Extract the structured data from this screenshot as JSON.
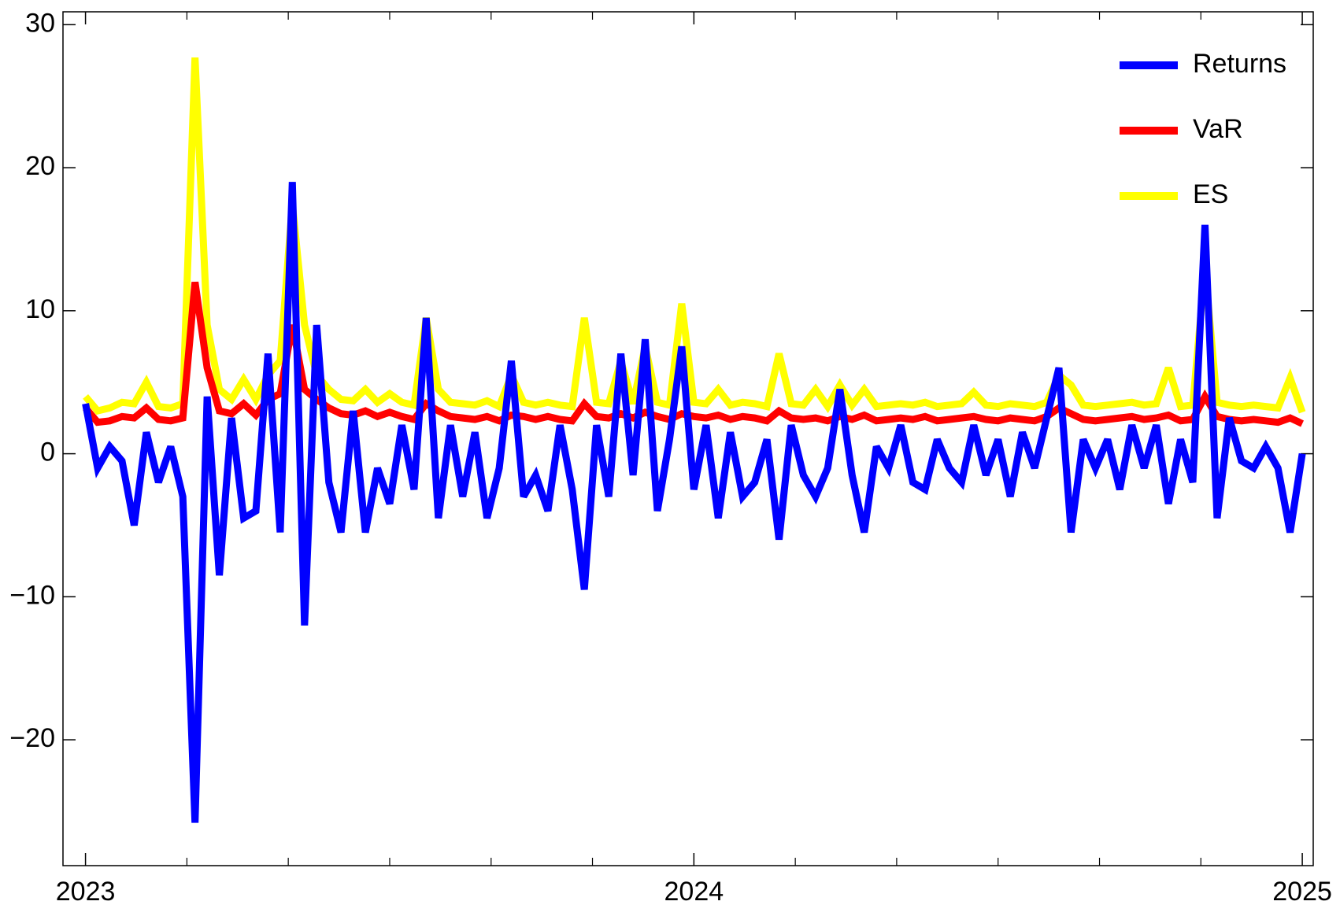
{
  "chart_data": {
    "type": "line",
    "x": [
      2023,
      2023.02,
      2023.04,
      2023.06,
      2023.08,
      2023.1,
      2023.12,
      2023.14,
      2023.16,
      2023.18,
      2023.2,
      2023.22,
      2023.24,
      2023.26,
      2023.28,
      2023.3,
      2023.32,
      2023.34,
      2023.36,
      2023.38,
      2023.4,
      2023.42,
      2023.44,
      2023.46,
      2023.48,
      2023.5,
      2023.52,
      2023.54,
      2023.56,
      2023.58,
      2023.6,
      2023.62,
      2023.64,
      2023.66,
      2023.68,
      2023.7,
      2023.72,
      2023.74,
      2023.76,
      2023.78,
      2023.8,
      2023.82,
      2023.84,
      2023.86,
      2023.88,
      2023.9,
      2023.92,
      2023.94,
      2023.96,
      2023.98,
      2024,
      2024.02,
      2024.04,
      2024.06,
      2024.08,
      2024.1,
      2024.12,
      2024.14,
      2024.16,
      2024.18,
      2024.2,
      2024.22,
      2024.24,
      2024.26,
      2024.28,
      2024.3,
      2024.32,
      2024.34,
      2024.36,
      2024.38,
      2024.4,
      2024.42,
      2024.44,
      2024.46,
      2024.48,
      2024.5,
      2024.52,
      2024.54,
      2024.56,
      2024.58,
      2024.6,
      2024.62,
      2024.64,
      2024.66,
      2024.68,
      2024.7,
      2024.72,
      2024.74,
      2024.76,
      2024.78,
      2024.8,
      2024.82,
      2024.84,
      2024.86,
      2024.88,
      2024.9,
      2024.92,
      2024.94,
      2024.96,
      2024.98,
      2025
    ],
    "series": [
      {
        "name": "Returns",
        "color": "#0000ff",
        "values": [
          3.5,
          -1,
          0.5,
          -0.5,
          -5,
          1.5,
          -2,
          0.5,
          -3,
          -25.8,
          4,
          -8.5,
          2.5,
          -4.5,
          -4,
          7,
          -5.5,
          19,
          -12,
          9,
          -2,
          -5.5,
          3,
          -5.5,
          -1,
          -3.5,
          2,
          -2.5,
          9.5,
          -4.5,
          2,
          -3,
          1.5,
          -4.5,
          -1,
          6.5,
          -3,
          -1.5,
          -4,
          2,
          -2.5,
          -9.5,
          2,
          -3,
          7,
          -1.5,
          8,
          -4,
          1,
          7.5,
          -2.5,
          2,
          -4.5,
          1.5,
          -3,
          -2,
          1,
          -6,
          2,
          -1.5,
          -3,
          -1,
          4.5,
          -1.5,
          -5.5,
          0.5,
          -1,
          2,
          -2,
          -2.5,
          1,
          -1,
          -2,
          2,
          -1.5,
          1,
          -3,
          1.5,
          -1,
          2.5,
          6,
          -5.5,
          1,
          -1,
          1,
          -2.5,
          2,
          -1,
          2,
          -3.5,
          1,
          -2,
          16,
          -4.5,
          2.5,
          -0.5,
          -1,
          0.5,
          -1,
          -5.5,
          0
        ]
      },
      {
        "name": "VaR",
        "color": "#ff0000",
        "values": [
          3.2,
          2.2,
          2.3,
          2.6,
          2.5,
          3.2,
          2.4,
          2.3,
          2.5,
          12,
          6,
          3,
          2.8,
          3.5,
          2.7,
          3.8,
          4.2,
          9,
          4.5,
          3.8,
          3.2,
          2.8,
          2.7,
          3,
          2.6,
          2.9,
          2.6,
          2.4,
          3.5,
          3,
          2.6,
          2.5,
          2.4,
          2.6,
          2.3,
          2.7,
          2.6,
          2.4,
          2.6,
          2.4,
          2.3,
          3.5,
          2.6,
          2.5,
          2.8,
          2.5,
          2.9,
          2.6,
          2.4,
          2.8,
          2.6,
          2.5,
          2.7,
          2.4,
          2.6,
          2.5,
          2.3,
          3,
          2.5,
          2.4,
          2.5,
          2.3,
          2.6,
          2.4,
          2.7,
          2.3,
          2.4,
          2.5,
          2.4,
          2.6,
          2.3,
          2.4,
          2.5,
          2.6,
          2.4,
          2.3,
          2.5,
          2.4,
          2.3,
          2.6,
          3.2,
          2.8,
          2.4,
          2.3,
          2.4,
          2.5,
          2.6,
          2.4,
          2.5,
          2.7,
          2.3,
          2.4,
          4,
          2.6,
          2.4,
          2.3,
          2.4,
          2.3,
          2.2,
          2.5,
          2.1
        ]
      },
      {
        "name": "ES",
        "color": "#ffff00",
        "values": [
          4,
          3,
          3.2,
          3.6,
          3.5,
          5,
          3.3,
          3.2,
          3.5,
          27.7,
          9,
          4.5,
          3.8,
          5.2,
          3.8,
          5.5,
          6.5,
          17.5,
          9,
          5.5,
          4.5,
          3.8,
          3.7,
          4.5,
          3.6,
          4.2,
          3.6,
          3.4,
          9.5,
          4.5,
          3.6,
          3.5,
          3.4,
          3.7,
          3.3,
          5.5,
          3.6,
          3.4,
          3.6,
          3.4,
          3.3,
          9.5,
          3.6,
          3.5,
          6.5,
          3.5,
          7.5,
          3.6,
          3.4,
          10.5,
          3.6,
          3.5,
          4.5,
          3.4,
          3.6,
          3.5,
          3.3,
          7,
          3.5,
          3.4,
          4.5,
          3.3,
          4.8,
          3.4,
          4.5,
          3.3,
          3.4,
          3.5,
          3.4,
          3.6,
          3.3,
          3.4,
          3.5,
          4.3,
          3.4,
          3.3,
          3.5,
          3.4,
          3.3,
          3.6,
          5.5,
          4.8,
          3.4,
          3.3,
          3.4,
          3.5,
          3.6,
          3.4,
          3.5,
          6,
          3.3,
          3.4,
          13,
          3.6,
          3.4,
          3.3,
          3.4,
          3.3,
          3.2,
          5.3,
          2.9
        ]
      }
    ],
    "xlim": [
      2022.963,
      2025.018
    ],
    "xticks": [
      2023,
      2024,
      2025
    ],
    "xminorticks": [
      2023.1667,
      2023.3333,
      2023.5,
      2023.6667,
      2023.8333,
      2024.1667,
      2024.3333,
      2024.5,
      2024.6667,
      2024.8333
    ],
    "ylim": [
      -28.8,
      30.9
    ],
    "yticks": [
      {
        "value": -20,
        "label": "−20"
      },
      {
        "value": -10,
        "label": "−10"
      },
      0,
      10,
      20,
      30
    ],
    "legend": "top-right"
  }
}
